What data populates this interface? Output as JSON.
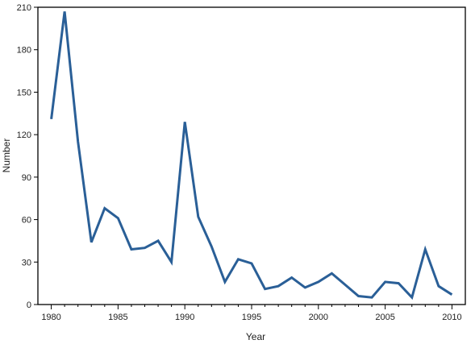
{
  "chart_data": {
    "type": "line",
    "title": "",
    "xlabel": "Year",
    "ylabel": "Number",
    "xlim": [
      1979,
      2011
    ],
    "ylim": [
      0,
      210
    ],
    "x_ticks": [
      1980,
      1985,
      1990,
      1995,
      2000,
      2005,
      2010
    ],
    "y_ticks": [
      0,
      30,
      60,
      90,
      120,
      150,
      180,
      210
    ],
    "grid": false,
    "line_color": "#2a5f97",
    "series": [
      {
        "x": [
          1980,
          1981,
          1982,
          1983,
          1984,
          1985,
          1986,
          1987,
          1988,
          1989,
          1990,
          1991,
          1992,
          1993,
          1994,
          1995,
          1996,
          1997,
          1998,
          1999,
          2000,
          2001,
          2002,
          2003,
          2004,
          2005,
          2006,
          2007,
          2008,
          2009,
          2010
        ],
        "values": [
          131,
          207,
          115,
          44,
          68,
          61,
          39,
          40,
          45,
          30,
          129,
          62,
          41,
          16,
          32,
          29,
          11,
          13,
          19,
          12,
          16,
          22,
          14,
          6,
          5,
          16,
          15,
          5,
          39,
          13,
          7
        ]
      }
    ]
  }
}
